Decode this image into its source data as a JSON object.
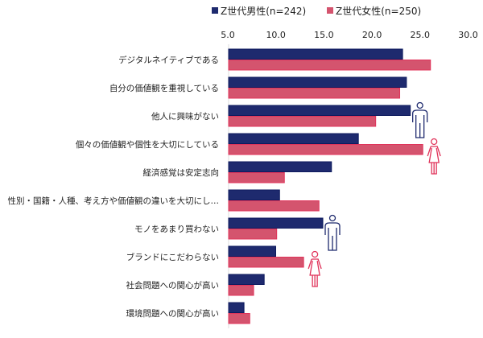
{
  "chart_data": {
    "type": "bar",
    "orientation": "horizontal",
    "title": "",
    "xlabel": "",
    "ylabel": "",
    "xlim": [
      5.0,
      30.0
    ],
    "xticks": [
      "5.0",
      "10.0",
      "15.0",
      "20.0",
      "25.0",
      "30.0"
    ],
    "xtick_values": [
      5,
      10,
      15,
      20,
      25,
      30
    ],
    "axis_position": "top",
    "grid": false,
    "legend_position": "top",
    "categories": [
      "デジタルネイティブである",
      "自分の価値観を重視している",
      "他人に興味がない",
      "個々の価値観や個性を大切にしている",
      "経済感覚は安定志向",
      "性別・国籍・人種、考え方や価値観の違いを大切にし…",
      "モノをあまり買わない",
      "ブランドにこだわらない",
      "社会問題への関心が高い",
      "環境問題への関心が高い"
    ],
    "series": [
      {
        "name": "Z世代男性(n=242)",
        "color": "#1e2a6e",
        "values": [
          23.1,
          23.5,
          23.9,
          18.5,
          15.7,
          10.3,
          14.8,
          9.9,
          8.7,
          6.6
        ]
      },
      {
        "name": "Z世代女性(n=250)",
        "color": "#d4546e",
        "values": [
          26.0,
          22.8,
          20.3,
          25.2,
          10.8,
          14.4,
          10.0,
          12.8,
          7.6,
          7.2
        ]
      }
    ],
    "annotations": [
      {
        "icon": "male-person-icon",
        "category_index": 2
      },
      {
        "icon": "female-person-icon",
        "category_index": 3
      },
      {
        "icon": "male-person-icon",
        "category_index": 6
      },
      {
        "icon": "female-person-icon",
        "category_index": 7
      }
    ]
  }
}
